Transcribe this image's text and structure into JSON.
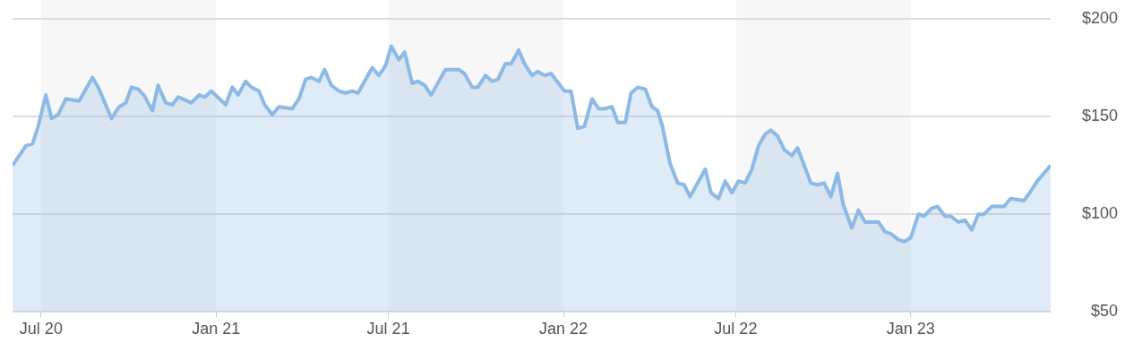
{
  "chart_data": {
    "type": "area",
    "marker": "none",
    "grid": "y",
    "xlim": [
      "2020-06-01",
      "2023-05-28"
    ],
    "xticks": [
      {
        "value": "2020-07-01",
        "label": "Jul 20"
      },
      {
        "value": "2021-01-01",
        "label": "Jan 21"
      },
      {
        "value": "2021-07-01",
        "label": "Jul 21"
      },
      {
        "value": "2022-01-01",
        "label": "Jan 22"
      },
      {
        "value": "2022-07-01",
        "label": "Jul 22"
      },
      {
        "value": "2023-01-01",
        "label": "Jan 23"
      }
    ],
    "ylim": [
      50,
      200
    ],
    "yticks": [
      {
        "value": 50,
        "label": "$50"
      },
      {
        "value": 100,
        "label": "$100"
      },
      {
        "value": 150,
        "label": "$150"
      },
      {
        "value": 200,
        "label": "$200"
      }
    ],
    "bands": [
      {
        "axis": "x",
        "from": "2020-07-01",
        "to": "2021-01-01",
        "color": "#f7f7f7"
      },
      {
        "axis": "x",
        "from": "2021-07-01",
        "to": "2022-01-01",
        "color": "#f7f7f7"
      },
      {
        "axis": "x",
        "from": "2022-07-01",
        "to": "2023-01-01",
        "color": "#f7f7f7"
      }
    ],
    "x": [
      "2020-06-01",
      "2020-06-15",
      "2020-06-22",
      "2020-06-28",
      "2020-07-06",
      "2020-07-12",
      "2020-07-19",
      "2020-07-27",
      "2020-08-10",
      "2020-08-24",
      "2020-08-30",
      "2020-09-13",
      "2020-09-21",
      "2020-09-28",
      "2020-10-04",
      "2020-10-11",
      "2020-10-17",
      "2020-10-26",
      "2020-11-01",
      "2020-11-09",
      "2020-11-16",
      "2020-11-22",
      "2020-12-06",
      "2020-12-14",
      "2020-12-20",
      "2020-12-27",
      "2021-01-11",
      "2021-01-18",
      "2021-01-24",
      "2021-02-01",
      "2021-02-07",
      "2021-02-15",
      "2021-02-21",
      "2021-03-01",
      "2021-03-08",
      "2021-03-22",
      "2021-03-29",
      "2021-04-05",
      "2021-04-11",
      "2021-04-19",
      "2021-04-25",
      "2021-05-02",
      "2021-05-10",
      "2021-05-17",
      "2021-05-24",
      "2021-05-30",
      "2021-06-14",
      "2021-06-21",
      "2021-06-28",
      "2021-07-04",
      "2021-07-12",
      "2021-07-18",
      "2021-07-26",
      "2021-08-01",
      "2021-08-08",
      "2021-08-15",
      "2021-08-30",
      "2021-09-13",
      "2021-09-19",
      "2021-09-27",
      "2021-10-03",
      "2021-10-11",
      "2021-10-18",
      "2021-10-24",
      "2021-11-01",
      "2021-11-07",
      "2021-11-15",
      "2021-11-21",
      "2021-11-29",
      "2021-12-05",
      "2021-12-12",
      "2021-12-19",
      "2022-01-02",
      "2022-01-09",
      "2022-01-16",
      "2022-01-23",
      "2022-01-31",
      "2022-02-07",
      "2022-02-13",
      "2022-02-21",
      "2022-02-27",
      "2022-03-07",
      "2022-03-13",
      "2022-03-20",
      "2022-03-28",
      "2022-04-04",
      "2022-04-10",
      "2022-04-15",
      "2022-04-23",
      "2022-05-01",
      "2022-05-08",
      "2022-05-14",
      "2022-05-30",
      "2022-06-05",
      "2022-06-13",
      "2022-06-20",
      "2022-06-27",
      "2022-07-04",
      "2022-07-11",
      "2022-07-18",
      "2022-07-25",
      "2022-08-01",
      "2022-08-07",
      "2022-08-14",
      "2022-08-21",
      "2022-08-29",
      "2022-09-04",
      "2022-09-11",
      "2022-09-18",
      "2022-09-25",
      "2022-10-02",
      "2022-10-09",
      "2022-10-16",
      "2022-10-22",
      "2022-10-31",
      "2022-11-07",
      "2022-11-14",
      "2022-11-28",
      "2022-12-05",
      "2022-12-11",
      "2022-12-19",
      "2022-12-25",
      "2023-01-01",
      "2023-01-09",
      "2023-01-15",
      "2023-01-23",
      "2023-01-29",
      "2023-02-06",
      "2023-02-12",
      "2023-02-20",
      "2023-02-27",
      "2023-03-06",
      "2023-03-13",
      "2023-03-19",
      "2023-03-27",
      "2023-04-09",
      "2023-04-16",
      "2023-04-30",
      "2023-05-06",
      "2023-05-14",
      "2023-05-21",
      "2023-05-28"
    ],
    "series": [
      {
        "color": "#8cb9e5",
        "values": [
          125,
          135,
          136,
          145,
          161,
          149,
          151,
          159,
          158,
          170,
          165,
          149,
          155,
          157,
          165,
          164,
          161,
          153,
          166,
          157,
          156,
          160,
          157,
          161,
          160,
          163,
          156,
          165,
          161,
          168,
          165,
          163,
          156,
          151,
          155,
          154,
          159,
          169,
          170,
          168,
          174,
          166,
          163,
          162,
          163,
          162,
          175,
          171,
          176,
          186,
          179,
          183,
          167,
          168,
          166,
          161,
          174,
          174,
          172,
          165,
          165,
          171,
          168,
          169,
          177,
          177,
          184,
          177,
          171,
          173,
          171,
          172,
          163,
          163,
          144,
          145,
          159,
          154,
          154,
          155,
          147,
          147,
          162,
          165,
          164,
          155,
          153,
          145,
          126,
          116,
          115,
          109,
          123,
          111,
          108,
          117,
          111,
          117,
          116,
          123,
          135,
          141,
          143,
          140,
          133,
          130,
          134,
          125,
          116,
          115,
          116,
          109,
          121,
          105,
          93,
          102,
          96,
          96,
          91,
          90,
          87,
          86,
          88,
          100,
          99,
          103,
          104,
          99,
          99,
          96,
          97,
          92,
          100,
          100,
          104,
          104,
          108,
          107,
          111,
          117,
          121,
          125
        ]
      }
    ]
  }
}
